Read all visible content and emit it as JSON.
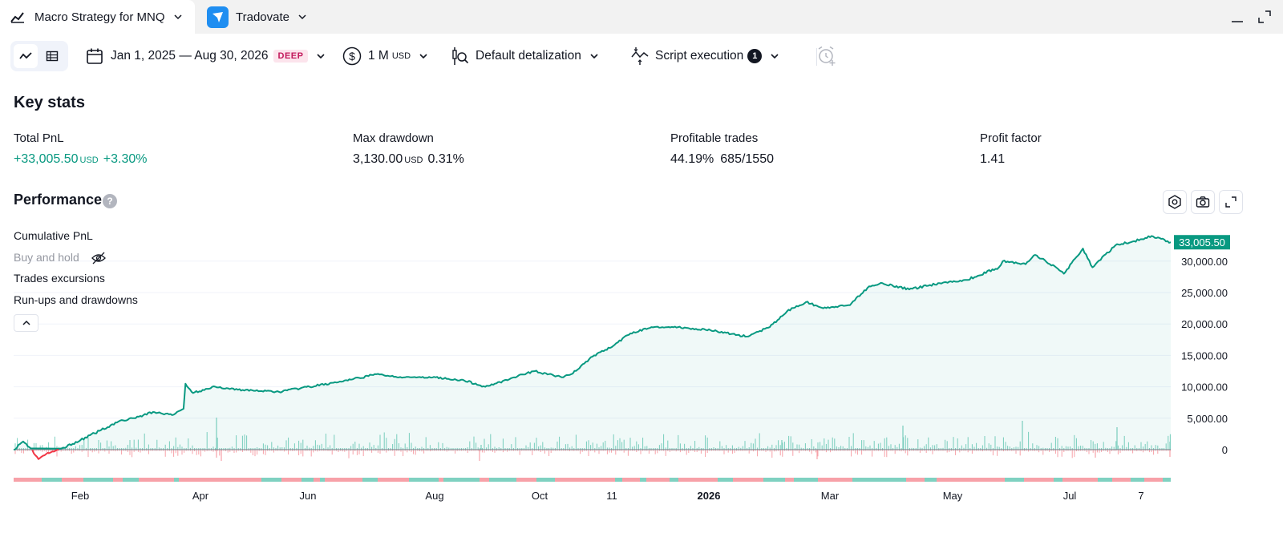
{
  "tabs": [
    {
      "label": "Macro Strategy for MNQ",
      "icon": "chart-line-icon",
      "active": true
    },
    {
      "label": "Tradovate",
      "icon": "tradovate-logo-icon",
      "active": false
    }
  ],
  "toolbar": {
    "view_modes": [
      "chart-view-icon",
      "table-view-icon"
    ],
    "date_range": "Jan 1, 2025 — Aug 30, 2026",
    "date_badge": "DEEP",
    "capital": "1 M",
    "capital_unit": "USD",
    "detalization": "Default detalization",
    "execution": "Script execution",
    "execution_count": "1"
  },
  "key_stats": {
    "title": "Key stats",
    "items": [
      {
        "label": "Total PnL",
        "value": "+33,005.50",
        "unit": "USD",
        "extra": "+3.30%",
        "positive": true
      },
      {
        "label": "Max drawdown",
        "value": "3,130.00",
        "unit": "USD",
        "extra": "0.31%",
        "positive": false
      },
      {
        "label": "Profitable trades",
        "value": "44.19%",
        "unit": "",
        "extra": "685/1550",
        "positive": false
      },
      {
        "label": "Profit factor",
        "value": "1.41",
        "unit": "",
        "extra": "",
        "positive": false
      }
    ]
  },
  "performance": {
    "title": "Performance",
    "legend": [
      "Cumulative PnL",
      "Buy and hold",
      "Trades excursions",
      "Run-ups and drawdowns"
    ],
    "last_value_label": "33,005.50"
  },
  "colors": {
    "accent_green": "#089981",
    "green_light": "#7fd1c1",
    "negative_red": "#f23645",
    "negative_light": "#f7a1a8"
  },
  "chart_data": {
    "type": "line",
    "series": [
      {
        "name": "Cumulative PnL",
        "x": [
          "2025-01-01",
          "2025-01-06",
          "2025-01-10",
          "2025-01-14",
          "2025-01-18",
          "2025-01-22",
          "2025-01-27",
          "2025-02-05",
          "2025-02-15",
          "2025-02-25",
          "2025-03-05",
          "2025-03-15",
          "2025-03-25",
          "2025-03-31",
          "2025-04-01",
          "2025-04-05",
          "2025-04-15",
          "2025-05-01",
          "2025-05-20",
          "2025-06-05",
          "2025-06-25",
          "2025-07-10",
          "2025-07-25",
          "2025-08-10",
          "2025-08-25",
          "2025-09-05",
          "2025-09-10",
          "2025-09-20",
          "2025-10-01",
          "2025-10-15",
          "2025-10-20",
          "2025-11-01",
          "2025-11-11",
          "2025-11-20",
          "2025-12-01",
          "2025-12-15",
          "2026-01-01",
          "2026-01-20",
          "2026-02-01",
          "2026-02-10",
          "2026-02-20",
          "2026-03-01",
          "2026-03-15",
          "2026-03-25",
          "2026-04-01",
          "2026-04-15",
          "2026-05-01",
          "2026-05-15",
          "2026-06-01",
          "2026-06-03",
          "2026-06-15",
          "2026-06-20",
          "2026-07-01",
          "2026-07-05",
          "2026-07-15",
          "2026-07-20",
          "2026-08-01",
          "2026-08-15",
          "2026-08-20",
          "2026-08-30"
        ],
        "values": [
          0,
          1300,
          200,
          -1500,
          -700,
          -300,
          300,
          1500,
          3000,
          4500,
          5000,
          6000,
          5500,
          6500,
          10500,
          9000,
          10000,
          9500,
          9200,
          10000,
          11000,
          12000,
          11500,
          11500,
          11000,
          10000,
          10500,
          11500,
          12500,
          11500,
          12000,
          15000,
          16500,
          18500,
          19500,
          19500,
          19000,
          18000,
          19500,
          22000,
          23500,
          22500,
          23000,
          26000,
          26500,
          25500,
          26500,
          27000,
          29000,
          30000,
          29500,
          31000,
          29000,
          28000,
          32000,
          29000,
          32500,
          33500,
          34000,
          33005.5
        ]
      }
    ],
    "x_tick_labels": [
      "Feb",
      "Apr",
      "Jun",
      "Aug",
      "Oct",
      "11",
      "2026",
      "Mar",
      "May",
      "Jul",
      "7"
    ],
    "y_tick_labels": [
      "0",
      "5,000.00",
      "10,000.00",
      "15,000.00",
      "20,000.00",
      "25,000.00",
      "30,000.00"
    ],
    "ylim": [
      0,
      33005.5
    ],
    "last_value": 33005.5,
    "grid": true,
    "area_fill": true
  }
}
